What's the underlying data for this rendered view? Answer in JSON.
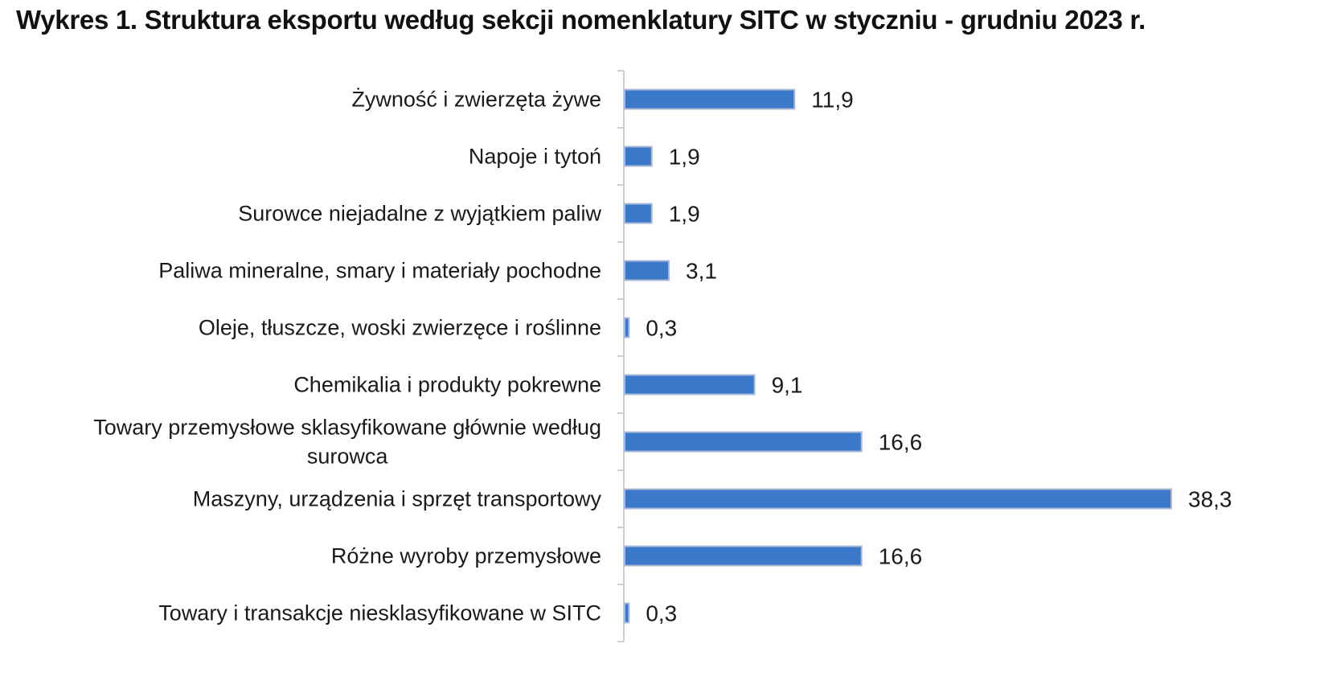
{
  "title": "Wykres 1. Struktura eksportu według sekcji nomenklatury SITC w styczniu - grudniu 2023 r.",
  "colors": {
    "bar_fill": "#3a78c9",
    "bar_stroke": "#a9b8d8",
    "axis": "#d0d0d0",
    "text": "#1a1a1a"
  },
  "chart_data": {
    "type": "bar",
    "orientation": "horizontal",
    "title": "Wykres 1. Struktura eksportu według sekcji nomenklatury SITC w styczniu - grudniu 2023 r.",
    "categories": [
      [
        "Żywność i zwierzęta żywe"
      ],
      [
        "Napoje i tytoń"
      ],
      [
        "Surowce niejadalne z wyjątkiem paliw"
      ],
      [
        "Paliwa mineralne, smary i materiały  pochodne"
      ],
      [
        "Oleje, tłuszcze, woski zwierzęce i roślinne"
      ],
      [
        "Chemikalia i produkty pokrewne"
      ],
      [
        "Towary przemysłowe sklasyfikowane głównie według",
        "surowca"
      ],
      [
        "Maszyny, urządzenia i sprzęt transportowy"
      ],
      [
        "Różne wyroby przemysłowe"
      ],
      [
        "Towary i transakcje niesklasyfikowane w SITC"
      ]
    ],
    "values": [
      11.9,
      1.9,
      1.9,
      3.1,
      0.3,
      9.1,
      16.6,
      38.3,
      16.6,
      0.3
    ],
    "value_labels": [
      "11,9",
      "1,9",
      "1,9",
      "3,1",
      "0,3",
      "9,1",
      "16,6",
      "38,3",
      "16,6",
      "0,3"
    ],
    "xlabel": "",
    "ylabel": "",
    "xlim": [
      0,
      38.3
    ],
    "grid": false,
    "legend": "none"
  }
}
